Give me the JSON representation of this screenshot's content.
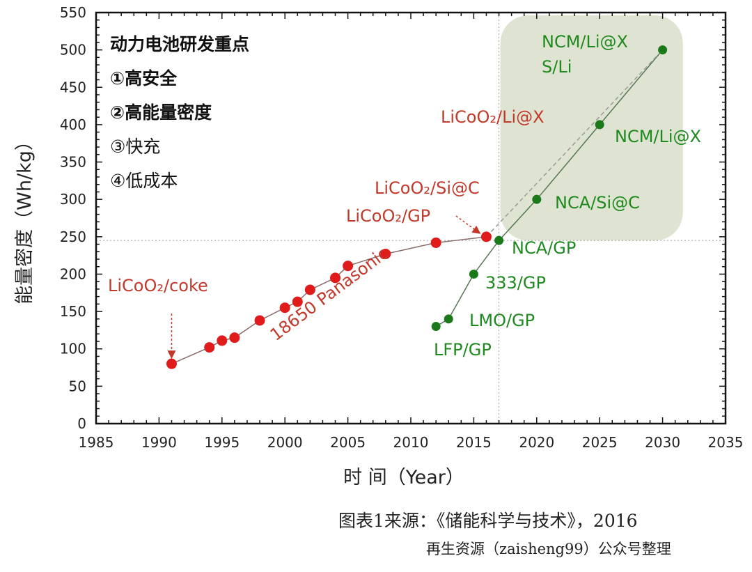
{
  "chart_data": {
    "type": "scatter",
    "title": "",
    "xlabel": "时 间（Year）",
    "ylabel": "能量密度（Wh/kg）",
    "xlim": [
      1985,
      2035
    ],
    "ylim": [
      0,
      550
    ],
    "xticks": [
      1985,
      1990,
      1995,
      2000,
      2005,
      2010,
      2015,
      2020,
      2025,
      2030,
      2035
    ],
    "yticks": [
      0,
      50,
      100,
      150,
      200,
      250,
      300,
      350,
      400,
      450,
      500,
      550
    ],
    "grid": false,
    "reference_lines": {
      "x": 2017,
      "y": 245
    },
    "highlight_region": {
      "x": [
        2017,
        2035
      ],
      "y": [
        245,
        550
      ],
      "color": "#dfe4d2"
    },
    "series": [
      {
        "name": "18650 Panasonic",
        "color": "#e01b1b",
        "x": [
          1991,
          1994,
          1995,
          1996,
          1998,
          2000,
          2001,
          2002,
          2004,
          2005,
          2008,
          2012,
          2016
        ],
        "y": [
          80,
          102,
          111,
          115,
          138,
          155,
          163,
          179,
          195,
          211,
          227,
          242,
          250
        ]
      },
      {
        "color": "#1a7a1a",
        "x": [
          2012,
          2013,
          2015,
          2017,
          2020,
          2025,
          2030
        ],
        "y": [
          130,
          140,
          200,
          245,
          300,
          400,
          500
        ]
      }
    ],
    "projection": {
      "from": [
        2016,
        250
      ],
      "to": [
        2030,
        500
      ],
      "style": "dashed"
    },
    "annotations": {
      "red": [
        "LiCoO₂/coke",
        "LiCoO₂/GP",
        "LiCoO₂/Si@C",
        "LiCoO₂/Li@X"
      ],
      "green": [
        "LFP/GP",
        "LMO/GP",
        "333/GP",
        "NCA/GP",
        "NCA/Si@C",
        "NCM/Li@X",
        "NCM/Li@X",
        "S/Li"
      ]
    },
    "notes": {
      "heading": "动力电池研发重点",
      "items": [
        "①高安全",
        "②高能量密度",
        "③快充",
        "④低成本"
      ]
    }
  },
  "footer": {
    "source": "图表1来源：《储能科学与技术》，2016",
    "credit": "再生资源（zaisheng99）公众号整理"
  }
}
